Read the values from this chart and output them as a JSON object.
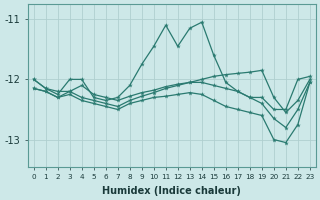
{
  "xlabel": "Humidex (Indice chaleur)",
  "ylabel": "",
  "background_color": "#cde8e8",
  "grid_color": "#b0cfcf",
  "line_color": "#2a7a70",
  "hours": [
    0,
    1,
    2,
    3,
    4,
    5,
    6,
    7,
    8,
    9,
    10,
    11,
    12,
    13,
    14,
    15,
    16,
    17,
    18,
    19,
    20,
    21,
    22,
    23
  ],
  "line1": [
    -12.0,
    -12.15,
    -12.25,
    -12.0,
    -12.0,
    -12.3,
    -12.35,
    -12.3,
    -12.1,
    -11.75,
    -11.45,
    -11.1,
    -11.45,
    -11.15,
    -11.05,
    -11.6,
    -12.05,
    -12.2,
    -12.3,
    -12.3,
    -12.5,
    -12.5,
    -12.0,
    -11.95
  ],
  "line2": [
    -12.15,
    -12.2,
    -12.3,
    -12.2,
    -12.3,
    -12.35,
    -12.4,
    -12.45,
    -12.35,
    -12.28,
    -12.22,
    -12.15,
    -12.1,
    -12.05,
    -12.05,
    -12.1,
    -12.15,
    -12.2,
    -12.3,
    -12.4,
    -12.65,
    -12.8,
    -12.5,
    -12.05
  ],
  "line3": [
    -12.15,
    -12.2,
    -12.3,
    -12.25,
    -12.35,
    -12.4,
    -12.45,
    -12.5,
    -12.4,
    -12.35,
    -12.3,
    -12.28,
    -12.25,
    -12.22,
    -12.25,
    -12.35,
    -12.45,
    -12.5,
    -12.55,
    -12.6,
    -13.0,
    -13.05,
    -12.75,
    -12.05
  ],
  "line4": [
    -12.0,
    -12.15,
    -12.2,
    -12.2,
    -12.1,
    -12.25,
    -12.3,
    -12.35,
    -12.28,
    -12.22,
    -12.18,
    -12.12,
    -12.08,
    -12.05,
    -12.0,
    -11.95,
    -11.92,
    -11.9,
    -11.88,
    -11.85,
    -12.3,
    -12.55,
    -12.35,
    -12.0
  ],
  "ylim": [
    -13.45,
    -10.75
  ],
  "yticks": [
    -13,
    -12,
    -11
  ],
  "figsize": [
    3.2,
    2.0
  ],
  "dpi": 100
}
